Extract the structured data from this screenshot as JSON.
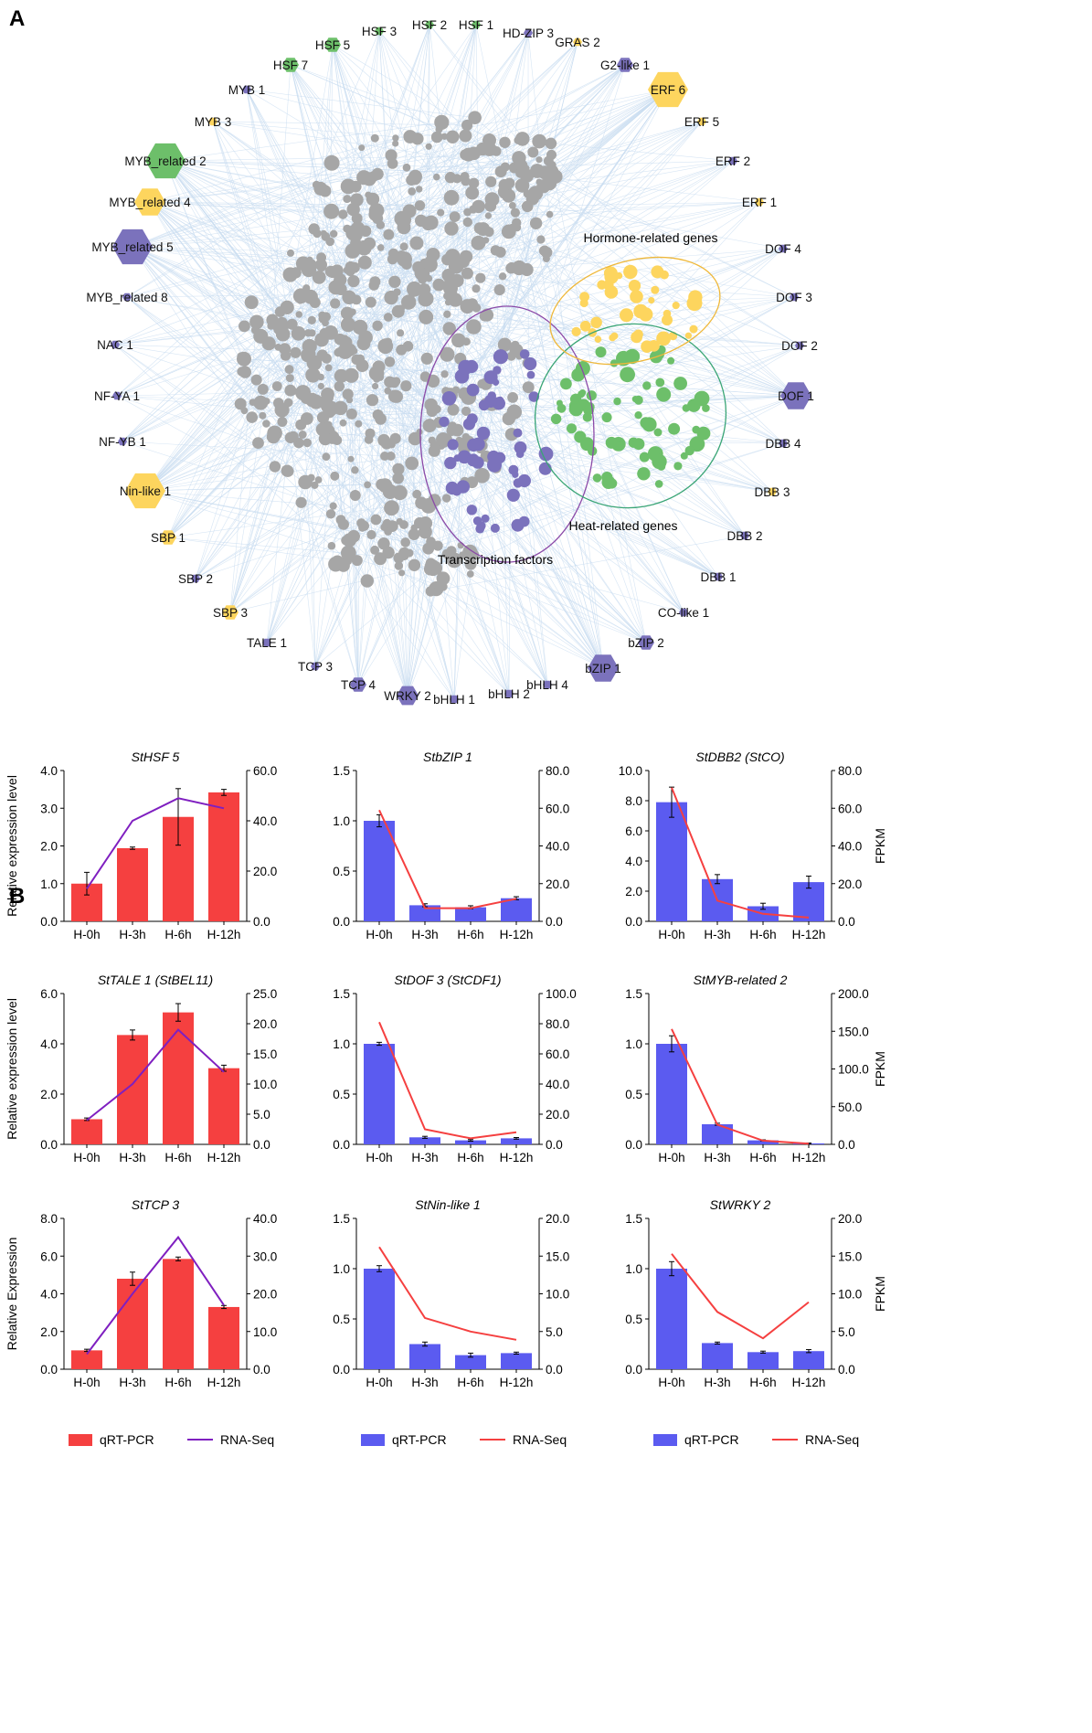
{
  "panel_labels": {
    "a": "A",
    "b": "B"
  },
  "network": {
    "colors": {
      "edge": "#c8dcf0",
      "gene": "#a6a6a6",
      "tf": "#7b72bc",
      "heat": "#6dbf6a",
      "hormone": "#fdd55e",
      "tf_ellipse": "#8b4aa8",
      "heat_ellipse": "#3aa576",
      "hormone_ellipse": "#efb83a"
    },
    "cluster_labels": {
      "hormone": "Hormone-related genes",
      "heat": "Heat-related genes",
      "tf": "Transcription factors"
    },
    "hubs": [
      {
        "label": "HSF 3",
        "color": "green",
        "size": 1
      },
      {
        "label": "HSF 2",
        "color": "green",
        "size": 1
      },
      {
        "label": "HSF 1",
        "color": "green",
        "size": 1
      },
      {
        "label": "HD-ZIP 3",
        "color": "purple",
        "size": 1
      },
      {
        "label": "HSF 5",
        "color": "green",
        "size": 2
      },
      {
        "label": "GRAS 2",
        "color": "yellow",
        "size": 1
      },
      {
        "label": "HSF 7",
        "color": "green",
        "size": 2
      },
      {
        "label": "G2-like 1",
        "color": "purple",
        "size": 2
      },
      {
        "label": "MYB 1",
        "color": "purple",
        "size": 1
      },
      {
        "label": "ERF 6",
        "color": "yellow",
        "size": 5
      },
      {
        "label": "MYB 3",
        "color": "yellow",
        "size": 1
      },
      {
        "label": "ERF 5",
        "color": "yellow",
        "size": 1
      },
      {
        "label": "MYB_related 2",
        "color": "green",
        "size": 5
      },
      {
        "label": "ERF 2",
        "color": "purple",
        "size": 1
      },
      {
        "label": "MYB_related 4",
        "color": "yellow",
        "size": 4
      },
      {
        "label": "ERF 1",
        "color": "yellow",
        "size": 1
      },
      {
        "label": "MYB_related 5",
        "color": "purple",
        "size": 5
      },
      {
        "label": "DOF 4",
        "color": "purple",
        "size": 1
      },
      {
        "label": "MYB_related 8",
        "color": "purple",
        "size": 1
      },
      {
        "label": "DOF 3",
        "color": "purple",
        "size": 1
      },
      {
        "label": "NAC 1",
        "color": "purple",
        "size": 1
      },
      {
        "label": "DOF 2",
        "color": "purple",
        "size": 1
      },
      {
        "label": "NF-YA 1",
        "color": "purple",
        "size": 1
      },
      {
        "label": "DOF 1",
        "color": "purple",
        "size": 4
      },
      {
        "label": "NF-YB 1",
        "color": "purple",
        "size": 1
      },
      {
        "label": "DBB 4",
        "color": "purple",
        "size": 1
      },
      {
        "label": "Nin-like 1",
        "color": "yellow",
        "size": 5
      },
      {
        "label": "DBB 3",
        "color": "yellow",
        "size": 1
      },
      {
        "label": "SBP 1",
        "color": "yellow",
        "size": 2
      },
      {
        "label": "DBB 2",
        "color": "purple",
        "size": 1
      },
      {
        "label": "SBP 2",
        "color": "purple",
        "size": 1
      },
      {
        "label": "DBB 1",
        "color": "purple",
        "size": 1
      },
      {
        "label": "SBP 3",
        "color": "yellow",
        "size": 2
      },
      {
        "label": "CO-like 1",
        "color": "purple",
        "size": 1
      },
      {
        "label": "TALE 1",
        "color": "purple",
        "size": 1
      },
      {
        "label": "bZIP 2",
        "color": "purple",
        "size": 2
      },
      {
        "label": "TCP 3",
        "color": "purple",
        "size": 1
      },
      {
        "label": "bZIP 1",
        "color": "purple",
        "size": 4
      },
      {
        "label": "TCP 4",
        "color": "purple",
        "size": 2
      },
      {
        "label": "WRKY 2",
        "color": "purple",
        "size": 3
      },
      {
        "label": "bHLH 1",
        "color": "purple",
        "size": 1
      },
      {
        "label": "bHLH 2",
        "color": "purple",
        "size": 1
      },
      {
        "label": "bHLH 4",
        "color": "purple",
        "size": 1
      }
    ]
  },
  "legend": {
    "qrt": "qRT-PCR",
    "rna": "RNA-Seq"
  },
  "chart_data": [
    {
      "type": "bar",
      "title": "StHSF 5",
      "categories": [
        "H-0h",
        "H-3h",
        "H-6h",
        "H-12h"
      ],
      "ylabel": "Relative expression level",
      "y2label": "",
      "yticks": [
        "0.0",
        "1.0",
        "2.0",
        "3.0",
        "4.0"
      ],
      "y2ticks": [
        "0.0",
        "20.0",
        "40.0",
        "60.0"
      ],
      "ylim": [
        0,
        4
      ],
      "y2lim": [
        0,
        60
      ],
      "bar_color": "red",
      "line_color": "purple",
      "series": [
        {
          "name": "qRT-PCR",
          "values": [
            1.0,
            1.94,
            2.77,
            3.42
          ],
          "errors": [
            0.3,
            0.03,
            0.75,
            0.08
          ]
        },
        {
          "name": "RNA-Seq",
          "values": [
            13,
            40,
            49,
            45
          ]
        }
      ]
    },
    {
      "type": "bar",
      "title": "StbZIP 1",
      "categories": [
        "H-0h",
        "H-3h",
        "H-6h",
        "H-12h"
      ],
      "ylabel": "",
      "y2label": "",
      "yticks": [
        "0.0",
        "0.5",
        "1.0",
        "1.5"
      ],
      "y2ticks": [
        "0.0",
        "20.0",
        "40.0",
        "60.0",
        "80.0"
      ],
      "ylim": [
        0,
        1.5
      ],
      "y2lim": [
        0,
        80
      ],
      "bar_color": "blue",
      "line_color": "red",
      "series": [
        {
          "name": "qRT-PCR",
          "values": [
            1.0,
            0.16,
            0.14,
            0.23
          ],
          "errors": [
            0.06,
            0.015,
            0.015,
            0.015
          ]
        },
        {
          "name": "RNA-Seq",
          "values": [
            59,
            7,
            7,
            12
          ]
        }
      ]
    },
    {
      "type": "bar",
      "title": "StDBB2 (StCO)",
      "categories": [
        "H-0h",
        "H-3h",
        "H-6h",
        "H-12h"
      ],
      "ylabel": "",
      "y2label": "FPKM",
      "yticks": [
        "0.0",
        "2.0",
        "4.0",
        "6.0",
        "8.0",
        "10.0"
      ],
      "y2ticks": [
        "0.0",
        "20.0",
        "40.0",
        "60.0",
        "80.0"
      ],
      "ylim": [
        0,
        10
      ],
      "y2lim": [
        0,
        80
      ],
      "bar_color": "blue",
      "line_color": "red",
      "series": [
        {
          "name": "qRT-PCR",
          "values": [
            7.9,
            2.8,
            1.0,
            2.6
          ],
          "errors": [
            1.0,
            0.3,
            0.2,
            0.4
          ]
        },
        {
          "name": "RNA-Seq",
          "values": [
            71,
            11,
            4,
            2
          ]
        }
      ]
    },
    {
      "type": "bar",
      "title": "StTALE 1 (StBEL11)",
      "categories": [
        "H-0h",
        "H-3h",
        "H-6h",
        "H-12h"
      ],
      "ylabel": "Relative expression level",
      "y2label": "",
      "yticks": [
        "0.0",
        "2.0",
        "4.0",
        "6.0"
      ],
      "y2ticks": [
        "0.0",
        "5.0",
        "10.0",
        "15.0",
        "20.0",
        "25.0"
      ],
      "ylim": [
        0,
        6
      ],
      "y2lim": [
        0,
        25
      ],
      "bar_color": "red",
      "line_color": "purple",
      "series": [
        {
          "name": "qRT-PCR",
          "values": [
            1.0,
            4.35,
            5.25,
            3.03
          ],
          "errors": [
            0.05,
            0.2,
            0.35,
            0.12
          ]
        },
        {
          "name": "RNA-Seq",
          "values": [
            4,
            10,
            19,
            12
          ]
        }
      ]
    },
    {
      "type": "bar",
      "title": "StDOF 3 (StCDF1)",
      "categories": [
        "H-0h",
        "H-3h",
        "H-6h",
        "H-12h"
      ],
      "ylabel": "",
      "y2label": "",
      "yticks": [
        "0.0",
        "0.5",
        "1.0",
        "1.5"
      ],
      "y2ticks": [
        "0.0",
        "20.0",
        "40.0",
        "60.0",
        "80.0",
        "100.0"
      ],
      "ylim": [
        0,
        1.5
      ],
      "y2lim": [
        0,
        100
      ],
      "bar_color": "blue",
      "line_color": "red",
      "series": [
        {
          "name": "qRT-PCR",
          "values": [
            1.0,
            0.07,
            0.04,
            0.06
          ],
          "errors": [
            0.015,
            0.01,
            0.008,
            0.008
          ]
        },
        {
          "name": "RNA-Seq",
          "values": [
            81,
            10,
            4,
            8
          ]
        }
      ]
    },
    {
      "type": "bar",
      "title": "StMYB-related 2",
      "categories": [
        "H-0h",
        "H-3h",
        "H-6h",
        "H-12h"
      ],
      "ylabel": "",
      "y2label": "FPKM",
      "yticks": [
        "0.0",
        "0.5",
        "1.0",
        "1.5"
      ],
      "y2ticks": [
        "0.0",
        "50.0",
        "100.0",
        "150.0",
        "200.0"
      ],
      "ylim": [
        0,
        1.5
      ],
      "y2lim": [
        0,
        200
      ],
      "bar_color": "blue",
      "line_color": "red",
      "series": [
        {
          "name": "qRT-PCR",
          "values": [
            1.0,
            0.2,
            0.04,
            0.01
          ],
          "errors": [
            0.08,
            0.01,
            0.005,
            0.003
          ]
        },
        {
          "name": "RNA-Seq",
          "values": [
            153,
            26,
            5,
            1
          ]
        }
      ]
    },
    {
      "type": "bar",
      "title": "StTCP 3",
      "categories": [
        "H-0h",
        "H-3h",
        "H-6h",
        "H-12h"
      ],
      "ylabel": "Relative Expression",
      "y2label": "",
      "yticks": [
        "0.0",
        "2.0",
        "4.0",
        "6.0",
        "8.0"
      ],
      "y2ticks": [
        "0.0",
        "10.0",
        "20.0",
        "30.0",
        "40.0"
      ],
      "ylim": [
        0,
        8
      ],
      "y2lim": [
        0,
        40
      ],
      "bar_color": "red",
      "line_color": "purple",
      "series": [
        {
          "name": "qRT-PCR",
          "values": [
            1.0,
            4.8,
            5.85,
            3.3
          ],
          "errors": [
            0.06,
            0.35,
            0.1,
            0.08
          ]
        },
        {
          "name": "RNA-Seq",
          "values": [
            4,
            20,
            35,
            17
          ]
        }
      ]
    },
    {
      "type": "bar",
      "title": "StNin-like 1",
      "categories": [
        "H-0h",
        "H-3h",
        "H-6h",
        "H-12h"
      ],
      "ylabel": "",
      "y2label": "",
      "yticks": [
        "0.0",
        "0.5",
        "1.0",
        "1.5"
      ],
      "y2ticks": [
        "0.0",
        "5.0",
        "10.0",
        "15.0",
        "20.0"
      ],
      "ylim": [
        0,
        1.5
      ],
      "y2lim": [
        0,
        20
      ],
      "bar_color": "blue",
      "line_color": "red",
      "series": [
        {
          "name": "qRT-PCR",
          "values": [
            1.0,
            0.25,
            0.14,
            0.16
          ],
          "errors": [
            0.03,
            0.02,
            0.02,
            0.01
          ]
        },
        {
          "name": "RNA-Seq",
          "values": [
            16.2,
            6.8,
            5.0,
            3.9
          ]
        }
      ]
    },
    {
      "type": "bar",
      "title": "StWRKY 2",
      "categories": [
        "H-0h",
        "H-3h",
        "H-6h",
        "H-12h"
      ],
      "ylabel": "",
      "y2label": "FPKM",
      "yticks": [
        "0.0",
        "0.5",
        "1.0",
        "1.5"
      ],
      "y2ticks": [
        "0.0",
        "5.0",
        "10.0",
        "15.0",
        "20.0"
      ],
      "ylim": [
        0,
        1.5
      ],
      "y2lim": [
        0,
        20
      ],
      "bar_color": "blue",
      "line_color": "red",
      "series": [
        {
          "name": "qRT-PCR",
          "values": [
            1.0,
            0.26,
            0.17,
            0.18
          ],
          "errors": [
            0.07,
            0.01,
            0.01,
            0.015
          ]
        },
        {
          "name": "RNA-Seq",
          "values": [
            15.3,
            7.6,
            4.1,
            8.9
          ]
        }
      ]
    }
  ]
}
